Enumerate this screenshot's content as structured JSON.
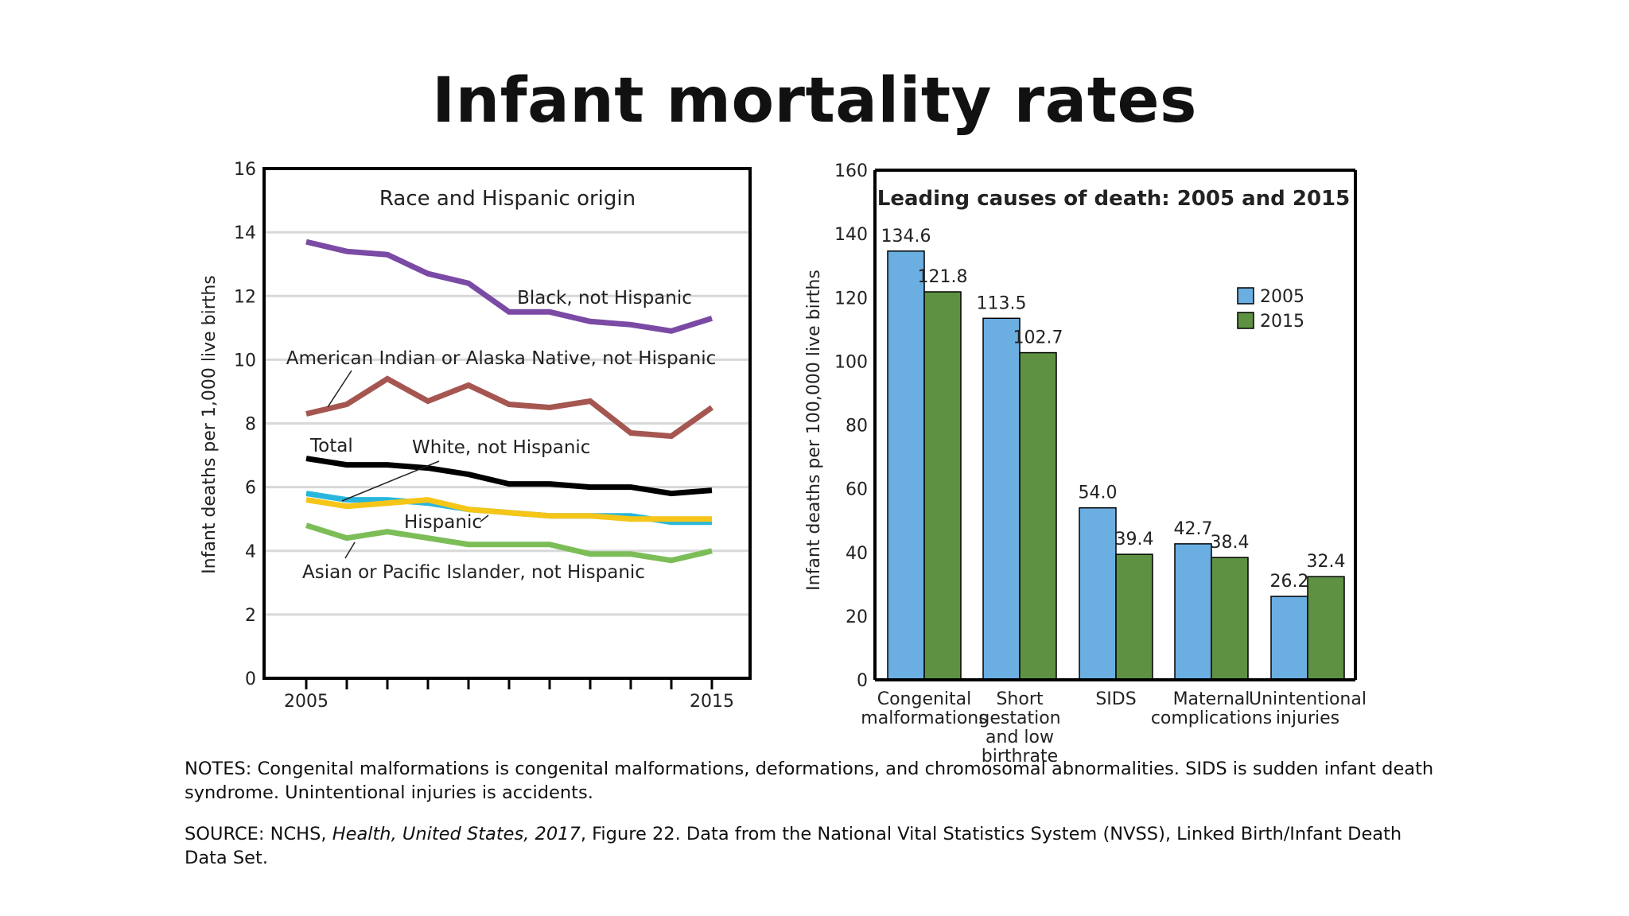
{
  "title": "Infant mortality rates",
  "notes_text": "NOTES: Congenital malformations is congenital malformations, deformations, and chromosomal abnormalities. SIDS is sudden infant death syndrome. Unintentional injuries is accidents.",
  "source": {
    "prefix": "SOURCE: NCHS, ",
    "publication": "Health, United States, 2017",
    "suffix": ", Figure 22. Data from the National Vital Statistics System (NVSS), Linked Birth/Infant Death Data Set."
  },
  "chart_data": [
    {
      "type": "line",
      "title": "Race and Hispanic origin",
      "ylabel": "Infant deaths per 1,000 live births",
      "xlabel": "",
      "ylim": [
        0,
        16
      ],
      "yticks": [
        0,
        2,
        4,
        6,
        8,
        10,
        12,
        14,
        16
      ],
      "xlim": [
        2005,
        2015
      ],
      "xtick_labels": [
        "2005",
        "2015"
      ],
      "grid": true,
      "x": [
        2005,
        2006,
        2007,
        2008,
        2009,
        2010,
        2011,
        2012,
        2013,
        2014,
        2015
      ],
      "series": [
        {
          "name": "Black, not Hispanic",
          "color": "#7b4aa5",
          "values": [
            13.7,
            13.4,
            13.3,
            12.7,
            12.4,
            11.5,
            11.5,
            11.2,
            11.1,
            10.9,
            11.3
          ]
        },
        {
          "name": "American Indian or Alaska Native, not Hispanic",
          "color": "#a55650",
          "values": [
            8.3,
            8.6,
            9.4,
            8.7,
            9.2,
            8.6,
            8.5,
            8.7,
            7.7,
            7.6,
            8.5
          ]
        },
        {
          "name": "Total",
          "color": "#000000",
          "values": [
            6.9,
            6.7,
            6.7,
            6.6,
            6.4,
            6.1,
            6.1,
            6.0,
            6.0,
            5.8,
            5.9
          ]
        },
        {
          "name": "White, not Hispanic",
          "color": "#29b6dd",
          "values": [
            5.8,
            5.6,
            5.6,
            5.5,
            5.3,
            5.2,
            5.1,
            5.1,
            5.1,
            4.9,
            4.9
          ]
        },
        {
          "name": "Hispanic",
          "color": "#f5c518",
          "values": [
            5.6,
            5.4,
            5.5,
            5.6,
            5.3,
            5.2,
            5.1,
            5.1,
            5.0,
            5.0,
            5.0
          ]
        },
        {
          "name": "Asian or Pacific Islander, not Hispanic",
          "color": "#7cbd58",
          "values": [
            4.8,
            4.4,
            4.6,
            4.4,
            4.2,
            4.2,
            4.2,
            3.9,
            3.9,
            3.7,
            4.0
          ]
        }
      ]
    },
    {
      "type": "bar",
      "title": "Leading causes of death: 2005 and 2015",
      "ylabel": "Infant deaths per 100,000 live births",
      "xlabel": "",
      "ylim": [
        0,
        160
      ],
      "yticks": [
        0,
        20,
        40,
        60,
        80,
        100,
        120,
        140,
        160
      ],
      "grid": false,
      "legend_position": "top-right",
      "categories": [
        "Congenital malformations",
        "Short gestation and low birthrate",
        "SIDS",
        "Maternal complications",
        "Unintentional injuries"
      ],
      "category_label_lines": [
        [
          "Congenital",
          "malformations"
        ],
        [
          "Short",
          "gestation",
          "and low",
          "birthrate"
        ],
        [
          "SIDS"
        ],
        [
          "Maternal",
          "complications"
        ],
        [
          "Unintentional",
          "injuries"
        ]
      ],
      "series": [
        {
          "name": "2005",
          "color": "#6aaee2",
          "values": [
            134.6,
            113.5,
            54.0,
            42.7,
            26.2
          ],
          "labels": [
            "134.6",
            "113.5",
            "54.0",
            "42.7",
            "26.2"
          ]
        },
        {
          "name": "2015",
          "color": "#5f9142",
          "values": [
            121.8,
            102.7,
            39.4,
            38.4,
            32.4
          ],
          "labels": [
            "121.8",
            "102.7",
            "39.4",
            "38.4",
            "32.4"
          ]
        }
      ]
    }
  ]
}
